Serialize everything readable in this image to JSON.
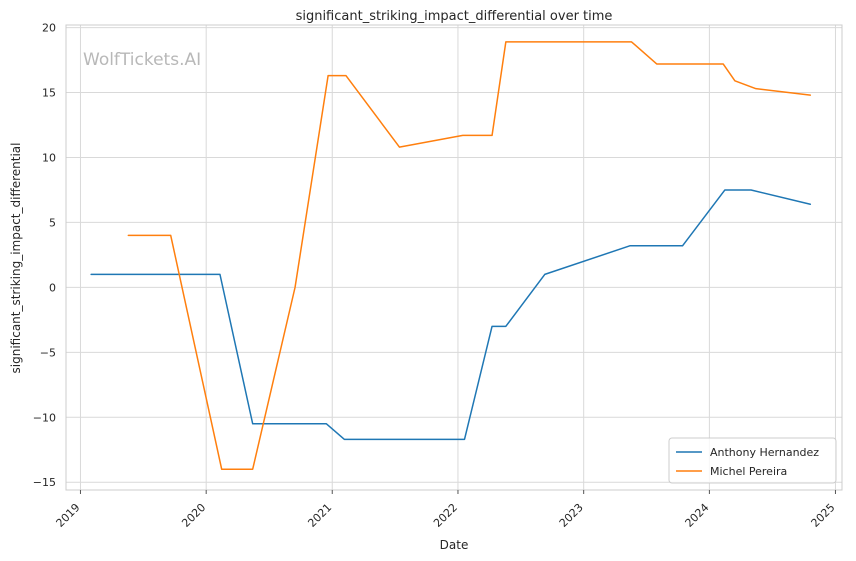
{
  "chart_data": {
    "type": "line",
    "title": "significant_striking_impact_differential over time",
    "xlabel": "Date",
    "ylabel": "significant_striking_impact_differential",
    "watermark": "WolfTickets.AI",
    "xlim": [
      "2018-11-20",
      "2025-01-20"
    ],
    "ylim": [
      -15.6,
      20.2
    ],
    "x_ticks": [
      "2019",
      "2020",
      "2021",
      "2022",
      "2023",
      "2024",
      "2025"
    ],
    "y_ticks": [
      20,
      15,
      10,
      5,
      0,
      -5,
      -10,
      -15
    ],
    "y_tick_labels": [
      "20",
      "15",
      "10",
      "5",
      "0",
      "−5",
      "−10",
      "−15"
    ],
    "grid": true,
    "legend_position": "bottom-right",
    "series": [
      {
        "name": "Anthony Hernandez",
        "color": "#1f77b4",
        "points": [
          [
            "2019-02-01",
            1
          ],
          [
            "2020-02-10",
            1
          ],
          [
            "2020-05-15",
            -10.5
          ],
          [
            "2020-12-15",
            -10.5
          ],
          [
            "2021-02-05",
            -11.7
          ],
          [
            "2022-01-20",
            -11.7
          ],
          [
            "2022-04-10",
            -3
          ],
          [
            "2022-05-20",
            -3
          ],
          [
            "2022-09-10",
            1
          ],
          [
            "2023-05-15",
            3.2
          ],
          [
            "2023-10-15",
            3.2
          ],
          [
            "2024-02-15",
            7.5
          ],
          [
            "2024-05-01",
            7.5
          ],
          [
            "2024-10-20",
            6.4
          ]
        ]
      },
      {
        "name": "Michel Pereira",
        "color": "#ff7f0e",
        "points": [
          [
            "2019-05-20",
            4
          ],
          [
            "2019-09-20",
            4
          ],
          [
            "2020-02-15",
            -14
          ],
          [
            "2020-05-15",
            -14
          ],
          [
            "2020-09-15",
            0
          ],
          [
            "2020-12-20",
            16.3
          ],
          [
            "2021-02-10",
            16.3
          ],
          [
            "2021-07-15",
            10.8
          ],
          [
            "2022-01-15",
            11.7
          ],
          [
            "2022-04-10",
            11.7
          ],
          [
            "2022-05-20",
            18.9
          ],
          [
            "2023-05-20",
            18.9
          ],
          [
            "2023-08-01",
            17.2
          ],
          [
            "2024-02-10",
            17.2
          ],
          [
            "2024-03-15",
            15.9
          ],
          [
            "2024-05-15",
            15.3
          ],
          [
            "2024-10-20",
            14.8
          ]
        ]
      }
    ]
  }
}
